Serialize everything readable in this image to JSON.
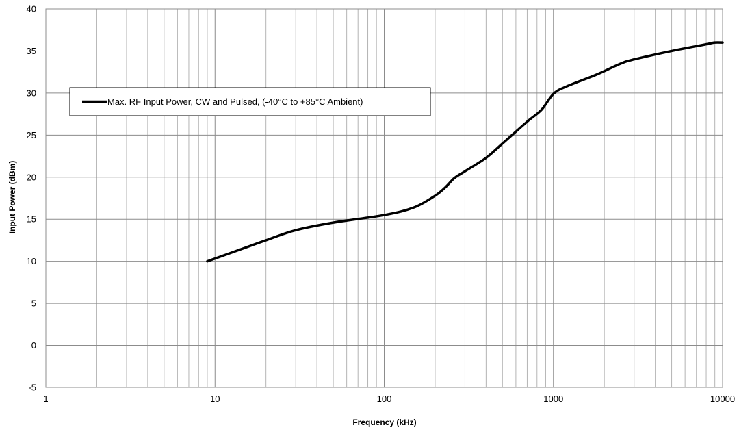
{
  "chart_data": {
    "type": "line",
    "xlabel": "Frequency (kHz)",
    "ylabel": "Input Power (dBm)",
    "x_scale": "log",
    "xlim": [
      1,
      10000
    ],
    "ylim": [
      -5,
      40
    ],
    "x_ticks": [
      "1",
      "10",
      "100",
      "1000",
      "10000"
    ],
    "y_ticks": [
      "-5",
      "0",
      "5",
      "10",
      "15",
      "20",
      "25",
      "30",
      "35",
      "40"
    ],
    "grid": true,
    "legend_position": "upper-left",
    "series": [
      {
        "name": "Max. RF Input Power, CW and Pulsed, (-40°C to +85°C Ambient)",
        "color": "#000000",
        "x": [
          9,
          15,
          20,
          30,
          50,
          100,
          150,
          200,
          230,
          260,
          300,
          400,
          500,
          700,
          850,
          1000,
          1200,
          1800,
          2500,
          3000,
          5000,
          8000,
          9000,
          10000
        ],
        "y": [
          10,
          11.6,
          12.5,
          13.7,
          14.6,
          15.5,
          16.4,
          17.8,
          18.8,
          19.9,
          20.7,
          22.3,
          24.0,
          26.6,
          28.0,
          29.9,
          30.8,
          32.2,
          33.5,
          34.0,
          35.0,
          35.8,
          36.0,
          36.0
        ]
      }
    ]
  }
}
